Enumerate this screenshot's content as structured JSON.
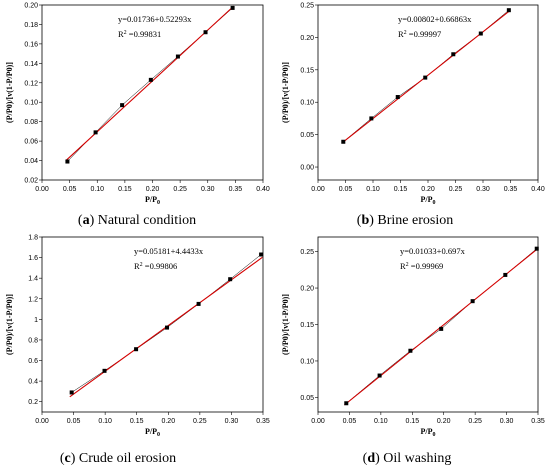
{
  "chart_data": [
    {
      "type": "scatter",
      "panel_letter": "a",
      "caption": "Natural condition",
      "xlabel": "P/P",
      "xlabel_sub": "0",
      "ylabel": "(P/P0)/[v(1-P/P0)]",
      "xlim": [
        0.0,
        0.4
      ],
      "xticks": [
        "0.00",
        "0.05",
        "0.10",
        "0.15",
        "0.20",
        "0.25",
        "0.30",
        "0.35",
        "0.40"
      ],
      "ylim": [
        0.02,
        0.2
      ],
      "yticks": [
        "0.02",
        "0.04",
        "0.06",
        "0.08",
        "0.10",
        "0.12",
        "0.14",
        "0.16",
        "0.18",
        "0.20"
      ],
      "points": {
        "x": [
          0.046,
          0.097,
          0.145,
          0.197,
          0.246,
          0.296,
          0.345
        ],
        "y": [
          0.039,
          0.069,
          0.097,
          0.123,
          0.147,
          0.172,
          0.197
        ]
      },
      "fit": {
        "intercept": 0.01736,
        "slope": 0.52293
      },
      "equation": "y=0.01736+0.52293x",
      "r2_label": "R",
      "r2_value": "=0.99831"
    },
    {
      "type": "scatter",
      "panel_letter": "b",
      "caption": "Brine erosion",
      "xlabel": "P/P",
      "xlabel_sub": "0",
      "ylabel": "(P/P0)/[v(1-P/P0)]",
      "xlim": [
        0.0,
        0.4
      ],
      "xticks": [
        "0.00",
        "0.05",
        "0.10",
        "0.15",
        "0.20",
        "0.25",
        "0.30",
        "0.35",
        "0.40"
      ],
      "ylim": [
        -0.02,
        0.25
      ],
      "yticks": [
        "0.00",
        "0.05",
        "0.10",
        "0.15",
        "0.20",
        "0.25"
      ],
      "points": {
        "x": [
          0.046,
          0.097,
          0.145,
          0.195,
          0.246,
          0.296,
          0.347
        ],
        "y": [
          0.039,
          0.075,
          0.108,
          0.138,
          0.174,
          0.206,
          0.242
        ]
      },
      "fit": {
        "intercept": 0.00802,
        "slope": 0.66863
      },
      "equation": "y=0.00802+0.66863x",
      "r2_label": "R",
      "r2_value": "=0.99997"
    },
    {
      "type": "scatter",
      "panel_letter": "c",
      "caption": "Crude oil erosion",
      "xlabel": "P/P",
      "xlabel_sub": "0",
      "ylabel": "(P/P0)/[v(1-P/P0)]",
      "xlim": [
        0.0,
        0.35
      ],
      "xticks": [
        "0.00",
        "0.05",
        "0.10",
        "0.15",
        "0.20",
        "0.25",
        "0.30",
        "0.35"
      ],
      "ylim": [
        0.1,
        1.8
      ],
      "yticks": [
        "0.2",
        "0.4",
        "0.6",
        "0.8",
        "1",
        "1.2",
        "1.4",
        "1.6",
        "1.8"
      ],
      "points": {
        "x": [
          0.047,
          0.099,
          0.149,
          0.198,
          0.248,
          0.298,
          0.347
        ],
        "y": [
          0.29,
          0.5,
          0.71,
          0.92,
          1.15,
          1.39,
          1.63
        ]
      },
      "fit": {
        "intercept": 0.05181,
        "slope": 4.4433
      },
      "equation": "y=0.05181+4.4433x",
      "r2_label": "R",
      "r2_value": "=0.99806"
    },
    {
      "type": "scatter",
      "panel_letter": "d",
      "caption": "Oil washing",
      "xlabel": "P/P",
      "xlabel_sub": "0",
      "ylabel": "(P/P0)/[v(1-P/P0)]",
      "xlim": [
        0.0,
        0.35
      ],
      "xticks": [
        "0.00",
        "0.05",
        "0.10",
        "0.15",
        "0.20",
        "0.25",
        "0.30",
        "0.35"
      ],
      "ylim": [
        0.03,
        0.27
      ],
      "yticks": [
        "0.05",
        "0.10",
        "0.15",
        "0.20",
        "0.25"
      ],
      "points": {
        "x": [
          0.045,
          0.098,
          0.147,
          0.196,
          0.246,
          0.298,
          0.348
        ],
        "y": [
          0.042,
          0.08,
          0.114,
          0.144,
          0.182,
          0.218,
          0.254
        ]
      },
      "fit": {
        "intercept": 0.01033,
        "slope": 0.697
      },
      "equation": "y=0.01033+0.697x",
      "r2_label": "R",
      "r2_value": "=0.99969"
    }
  ]
}
